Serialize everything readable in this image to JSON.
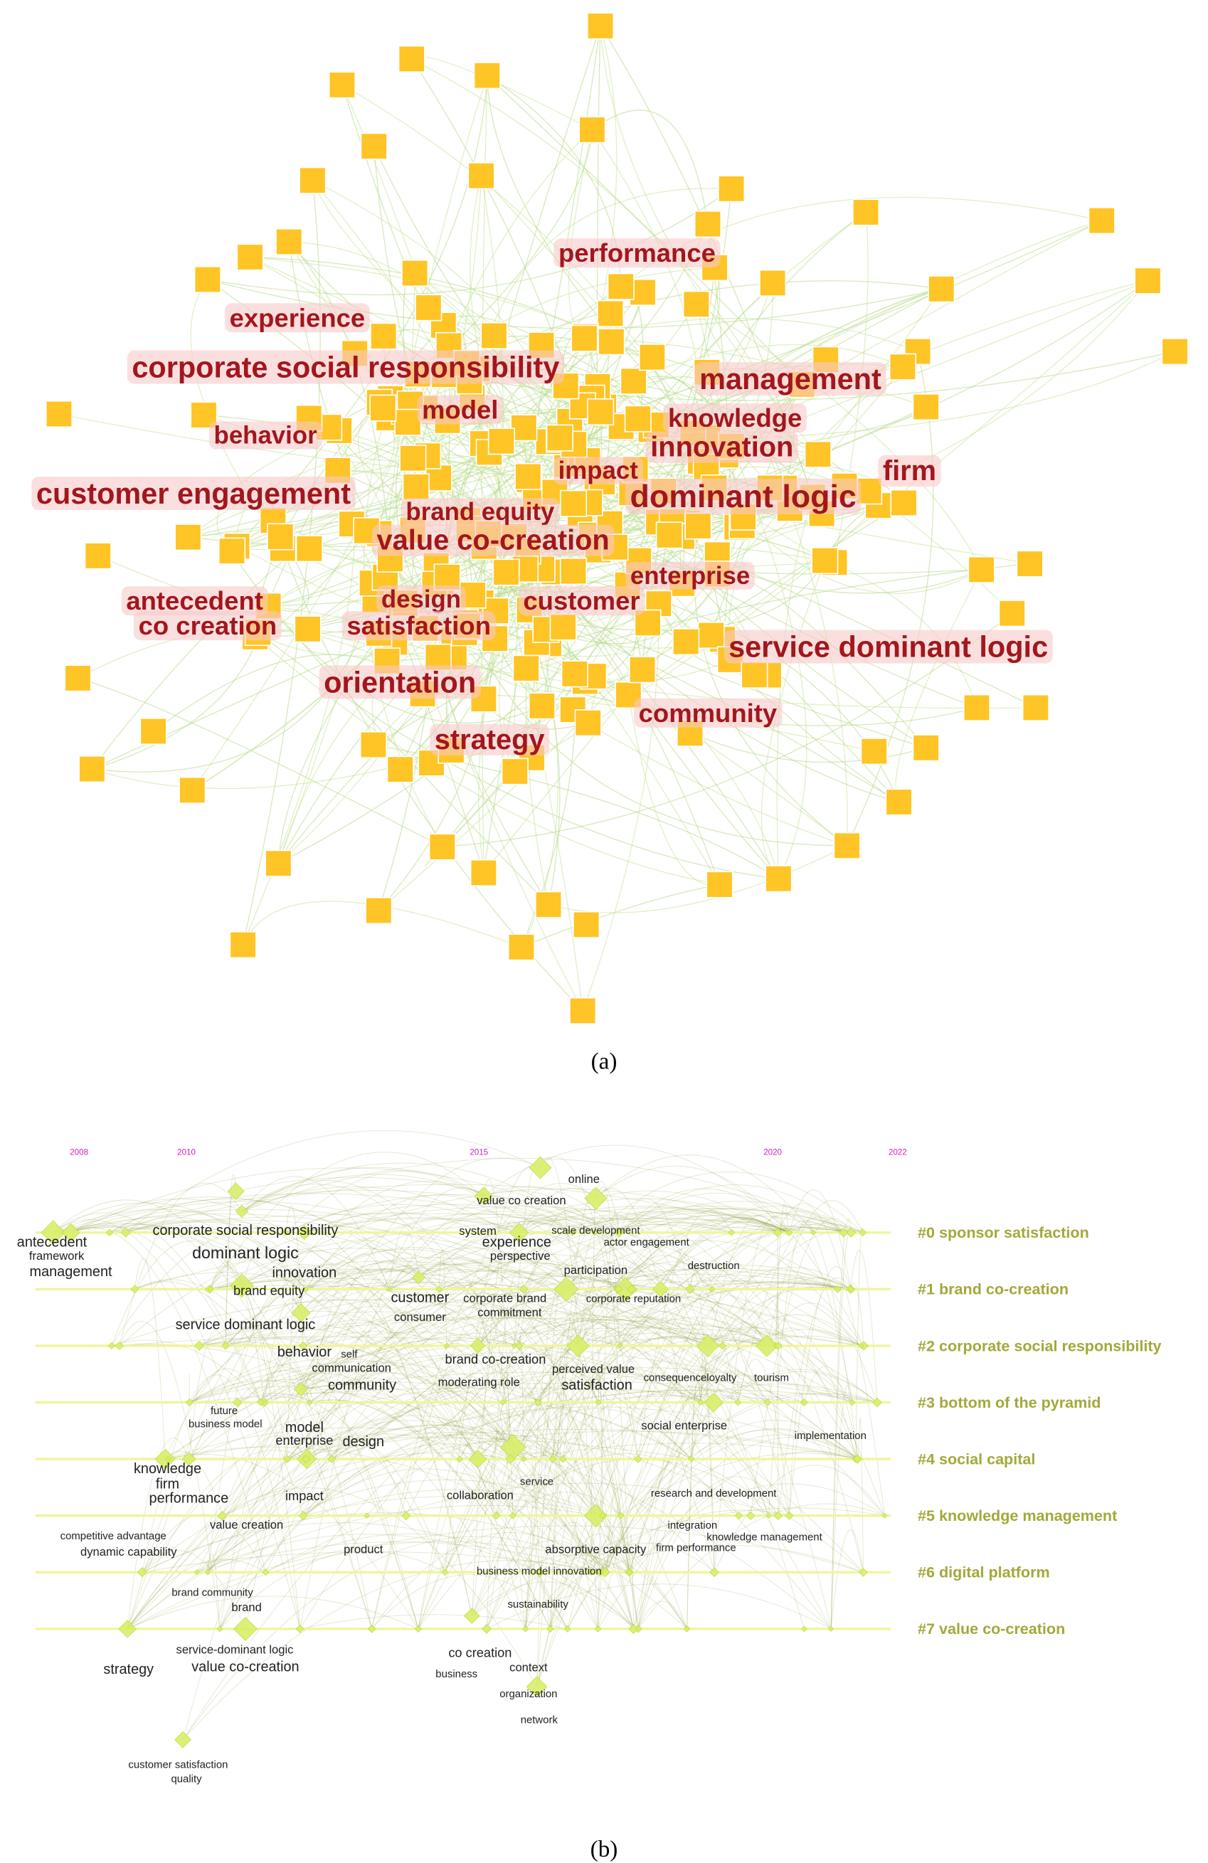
{
  "panel_a": {
    "labels": [
      "performance",
      "experience",
      "corporate social responsibility",
      "management",
      "model",
      "knowledge",
      "behavior",
      "innovation",
      "impact",
      "firm",
      "customer engagement",
      "dominant logic",
      "brand equity",
      "value co-creation",
      "enterprise",
      "antecedent",
      "design",
      "customer",
      "co creation",
      "satisfaction",
      "service dominant logic",
      "orientation",
      "community",
      "strategy"
    ],
    "caption": "(a)"
  },
  "panel_b": {
    "years": [
      2008,
      2010,
      2015,
      2020,
      2022
    ],
    "clusters": [
      "#0 sponsor satisfaction",
      "#1 brand co-creation",
      "#2 corporate social responsibility",
      "#3 bottom of the pyramid",
      "#4 social capital",
      "#5 knowledge management",
      "#6 digital platform",
      "#7 value co-creation"
    ],
    "keywords": [
      "online",
      "value co creation",
      "antecedent",
      "corporate social responsibility",
      "system",
      "experience",
      "scale development",
      "actor engagement",
      "framework",
      "dominant logic",
      "perspective",
      "management",
      "innovation",
      "participation",
      "destruction",
      "brand equity",
      "customer",
      "corporate brand",
      "corporate reputation",
      "consumer",
      "commitment",
      "service dominant logic",
      "behavior",
      "self",
      "brand co-creation",
      "communication",
      "perceived value",
      "moderating role",
      "consequenceloyalty",
      "tourism",
      "community",
      "satisfaction",
      "future",
      "business model",
      "model",
      "social enterprise",
      "enterprise",
      "design",
      "implementation",
      "knowledge",
      "firm",
      "service",
      "performance",
      "impact",
      "collaboration",
      "research and development",
      "competitive advantage",
      "integration",
      "value creation",
      "knowledge management",
      "dynamic capability",
      "product",
      "absorptive capacity",
      "firm performance",
      "business model innovation",
      "brand community",
      "sustainability",
      "brand",
      "service-dominant logic",
      "co creation",
      "strategy",
      "value co-creation",
      "business",
      "context",
      "organization",
      "network",
      "customer satisfaction",
      "quality"
    ],
    "caption": "(b)"
  }
}
